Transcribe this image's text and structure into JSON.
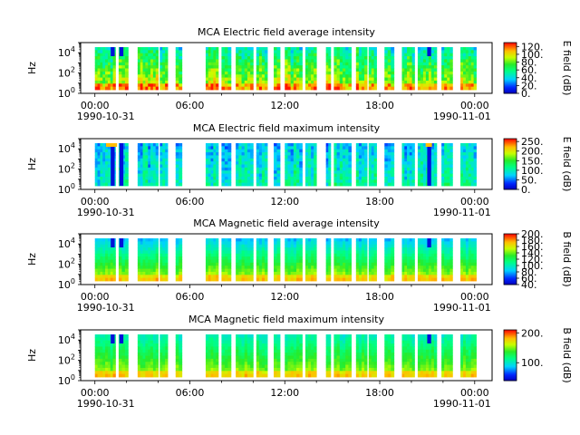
{
  "chart_data": [
    {
      "type": "heatmap",
      "title": "MCA  Electric field average intensity",
      "ylabel": "Hz",
      "yscale": "log",
      "ylim": [
        1,
        100000
      ],
      "yticks": [
        "10^0",
        "10^2",
        "10^4"
      ],
      "xticks": [
        "00:00",
        "06:00",
        "12:00",
        "18:00",
        "00:00"
      ],
      "xdates": [
        "1990-10-31",
        "1990-11-01"
      ],
      "colorbar_label": "E field (dB)",
      "colorbar_ticks": [
        "0.",
        "20.",
        "40.",
        "60.",
        "80.",
        "100.",
        "120."
      ],
      "colorbar_range": [
        0,
        130
      ],
      "bias": 0.45,
      "variant": 0,
      "blocks_hours": [
        [
          0.0,
          1.3
        ],
        [
          1.5,
          2.1
        ],
        [
          2.7,
          4.0
        ],
        [
          4.1,
          4.6
        ],
        [
          5.1,
          5.5
        ],
        [
          7.0,
          7.8
        ],
        [
          8.0,
          8.6
        ],
        [
          8.9,
          10.0
        ],
        [
          10.2,
          10.9
        ],
        [
          11.3,
          11.7
        ],
        [
          12.0,
          13.1
        ],
        [
          13.3,
          14.0
        ],
        [
          14.6,
          14.9
        ],
        [
          15.1,
          16.2
        ],
        [
          16.5,
          17.2
        ],
        [
          17.3,
          17.8
        ],
        [
          18.3,
          18.9
        ],
        [
          19.4,
          20.2
        ],
        [
          20.4,
          21.6
        ],
        [
          21.9,
          22.6
        ],
        [
          23.1,
          24.1
        ]
      ]
    },
    {
      "type": "heatmap",
      "title": "MCA  Electric field maximum intensity",
      "ylabel": "Hz",
      "yscale": "log",
      "ylim": [
        1,
        100000
      ],
      "yticks": [
        "10^0",
        "10^2",
        "10^4"
      ],
      "xticks": [
        "00:00",
        "06:00",
        "12:00",
        "18:00",
        "00:00"
      ],
      "xdates": [
        "1990-10-31",
        "1990-11-01"
      ],
      "colorbar_label": "E field (dB)",
      "colorbar_ticks": [
        "0.",
        "50.",
        "100.",
        "150.",
        "200.",
        "250."
      ],
      "colorbar_range": [
        0,
        265
      ],
      "bias": 0.35,
      "variant": 1,
      "blocks_hours": [
        [
          0.0,
          1.3
        ],
        [
          1.5,
          2.1
        ],
        [
          2.7,
          4.0
        ],
        [
          4.1,
          4.6
        ],
        [
          5.1,
          5.5
        ],
        [
          7.0,
          7.8
        ],
        [
          8.0,
          8.6
        ],
        [
          8.9,
          10.0
        ],
        [
          10.2,
          10.9
        ],
        [
          11.3,
          11.7
        ],
        [
          12.0,
          13.1
        ],
        [
          13.3,
          14.0
        ],
        [
          14.6,
          14.9
        ],
        [
          15.1,
          16.2
        ],
        [
          16.5,
          17.2
        ],
        [
          17.3,
          17.8
        ],
        [
          18.3,
          18.9
        ],
        [
          19.4,
          20.2
        ],
        [
          20.4,
          21.6
        ],
        [
          21.9,
          22.6
        ],
        [
          23.1,
          24.1
        ]
      ]
    },
    {
      "type": "heatmap",
      "title": "MCA  Magnetic field average intensity",
      "ylabel": "Hz",
      "yscale": "log",
      "ylim": [
        1,
        100000
      ],
      "yticks": [
        "10^0",
        "10^2",
        "10^4"
      ],
      "xticks": [
        "00:00",
        "06:00",
        "12:00",
        "18:00",
        "00:00"
      ],
      "xdates": [
        "1990-10-31",
        "1990-11-01"
      ],
      "colorbar_label": "B field (dB)",
      "colorbar_ticks": [
        "40.",
        "60.",
        "80.",
        "100.",
        "120.",
        "140.",
        "160.",
        "180.",
        "200."
      ],
      "colorbar_range": [
        40,
        200
      ],
      "bias": 0.5,
      "variant": 2,
      "blocks_hours": [
        [
          0.0,
          1.3
        ],
        [
          1.5,
          2.1
        ],
        [
          2.7,
          4.0
        ],
        [
          4.1,
          4.6
        ],
        [
          5.1,
          5.5
        ],
        [
          7.0,
          7.8
        ],
        [
          8.0,
          8.6
        ],
        [
          8.9,
          10.0
        ],
        [
          10.2,
          10.9
        ],
        [
          11.3,
          11.7
        ],
        [
          12.0,
          13.1
        ],
        [
          13.3,
          14.0
        ],
        [
          14.6,
          14.9
        ],
        [
          15.1,
          16.2
        ],
        [
          16.5,
          17.2
        ],
        [
          17.3,
          17.8
        ],
        [
          18.3,
          18.9
        ],
        [
          19.4,
          20.2
        ],
        [
          20.4,
          21.6
        ],
        [
          21.9,
          22.6
        ],
        [
          23.1,
          24.1
        ]
      ]
    },
    {
      "type": "heatmap",
      "title": "MCA  Magnetic field maximum intensity",
      "ylabel": "Hz",
      "yscale": "log",
      "ylim": [
        1,
        100000
      ],
      "yticks": [
        "10^0",
        "10^2",
        "10^4"
      ],
      "xticks": [
        "00:00",
        "06:00",
        "12:00",
        "18:00",
        "00:00"
      ],
      "xdates": [
        "1990-10-31",
        "1990-11-01"
      ],
      "colorbar_label": "B field (dB)",
      "colorbar_ticks": [
        "100.",
        "200."
      ],
      "colorbar_range": [
        40,
        210
      ],
      "bias": 0.5,
      "variant": 3,
      "blocks_hours": [
        [
          0.0,
          1.3
        ],
        [
          1.5,
          2.1
        ],
        [
          2.7,
          4.0
        ],
        [
          4.1,
          4.6
        ],
        [
          5.1,
          5.5
        ],
        [
          7.0,
          7.8
        ],
        [
          8.0,
          8.6
        ],
        [
          8.9,
          10.0
        ],
        [
          10.2,
          10.9
        ],
        [
          11.3,
          11.7
        ],
        [
          12.0,
          13.1
        ],
        [
          13.3,
          14.0
        ],
        [
          14.6,
          14.9
        ],
        [
          15.1,
          16.2
        ],
        [
          16.5,
          17.2
        ],
        [
          17.3,
          17.8
        ],
        [
          18.3,
          18.9
        ],
        [
          19.4,
          20.2
        ],
        [
          20.4,
          21.6
        ],
        [
          21.9,
          22.6
        ],
        [
          23.1,
          24.1
        ]
      ]
    }
  ]
}
